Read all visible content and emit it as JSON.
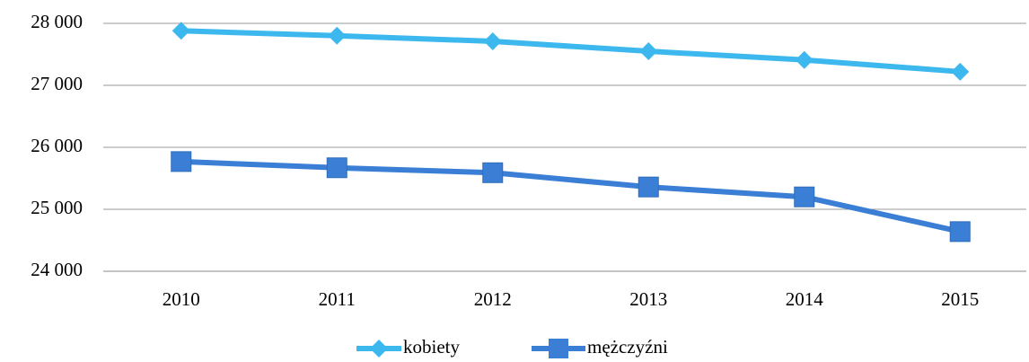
{
  "chart_data": {
    "type": "line",
    "categories": [
      "2010",
      "2011",
      "2012",
      "2013",
      "2014",
      "2015"
    ],
    "series": [
      {
        "name": "kobiety",
        "color": "#3db8ef",
        "marker": "diamond",
        "values": [
          27880,
          27800,
          27710,
          27550,
          27410,
          27220
        ]
      },
      {
        "name": "mężczyźni",
        "color": "#3a7fd5",
        "marker": "square",
        "values": [
          25770,
          25670,
          25590,
          25360,
          25200,
          24640
        ]
      }
    ],
    "ylim": [
      24000,
      28000
    ],
    "yticks": [
      {
        "value": 24000,
        "label": "24 000"
      },
      {
        "value": 25000,
        "label": "25 000"
      },
      {
        "value": 26000,
        "label": "26 000"
      },
      {
        "value": 27000,
        "label": "27 000"
      },
      {
        "value": 28000,
        "label": "28 000"
      }
    ],
    "grid": true,
    "legend": "bottom"
  }
}
